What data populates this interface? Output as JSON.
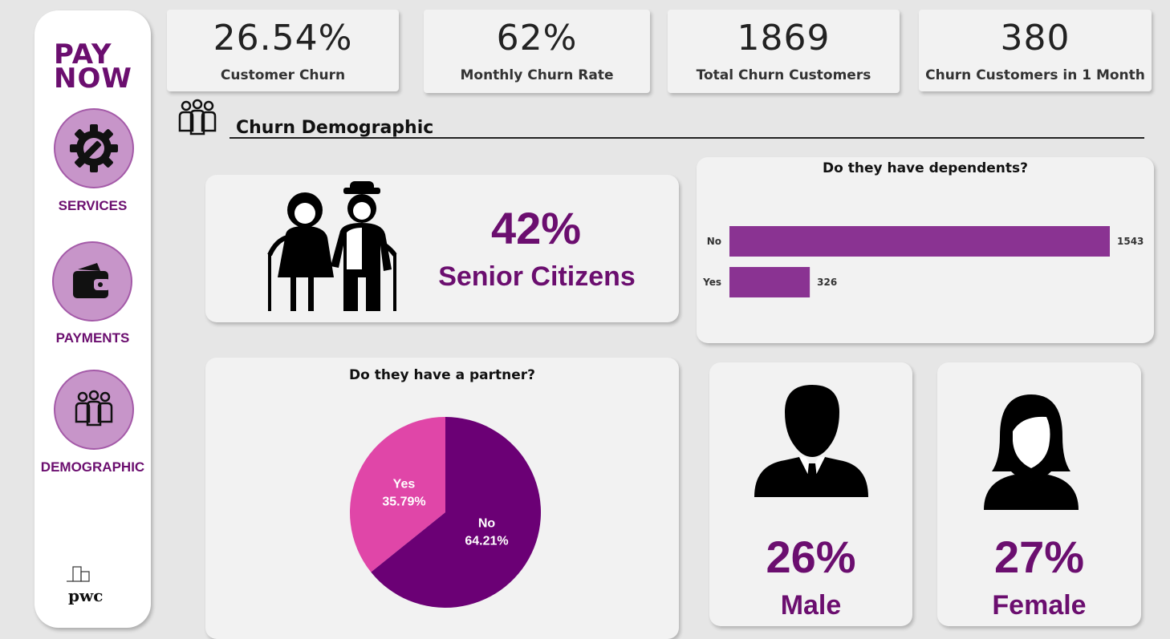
{
  "brand": {
    "line1": "PAY",
    "line2": "NOW",
    "footer_logo": "pwc"
  },
  "nav": [
    {
      "label": "SERVICES",
      "icon": "gear-wrench-icon"
    },
    {
      "label": "PAYMENTS",
      "icon": "wallet-icon"
    },
    {
      "label": "DEMOGRAPHIC",
      "icon": "people-icon"
    }
  ],
  "kpis": [
    {
      "value": "26.54%",
      "label": "Customer Churn"
    },
    {
      "value": "62%",
      "label": "Monthly Churn Rate"
    },
    {
      "value": "1869",
      "label": "Total Churn Customers"
    },
    {
      "value": "380",
      "label": "Churn Customers in 1 Month"
    }
  ],
  "section": {
    "title": "Churn Demographic",
    "icon": "people-icon"
  },
  "senior": {
    "value": "42%",
    "label": "Senior Citizens",
    "icon": "elderly-couple-icon"
  },
  "male": {
    "value": "26%",
    "label": "Male",
    "icon": "male-avatar-icon"
  },
  "female": {
    "value": "27%",
    "label": "Female",
    "icon": "female-avatar-icon"
  },
  "colors": {
    "accent": "#6b0e6f",
    "bar": "#8a3392",
    "pie_yes": "#e046a8",
    "pie_no": "#6b0075"
  },
  "chart_data": [
    {
      "type": "bar",
      "orientation": "horizontal",
      "title": "Do they have dependents?",
      "categories": [
        "No",
        "Yes"
      ],
      "values": [
        1543,
        326
      ],
      "data_labels": [
        "1543",
        "326"
      ]
    },
    {
      "type": "pie",
      "title": "Do they have a partner?",
      "categories": [
        "Yes",
        "No"
      ],
      "values": [
        35.79,
        64.21
      ],
      "data_labels": [
        "35.79%",
        "64.21%"
      ]
    }
  ]
}
